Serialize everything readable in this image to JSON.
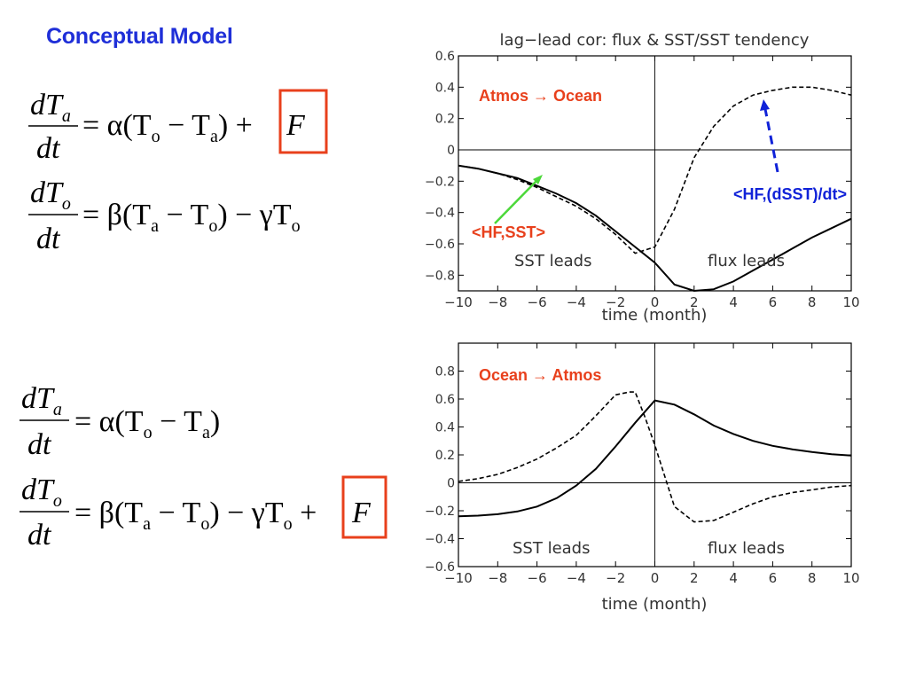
{
  "slide": {
    "title": "Conceptual Model"
  },
  "equations": {
    "top": {
      "eq1": {
        "num": "dT",
        "num_sub": "a",
        "den": "dt",
        "rhs": "= α(T",
        "s1": "o",
        "mid": " − T",
        "s2": "a",
        "end": ") + ",
        "forcing": "F"
      },
      "eq2": {
        "num": "dT",
        "num_sub": "o",
        "den": "dt",
        "rhs": "= β(T",
        "s1": "a",
        "mid": " − T",
        "s2": "o",
        "end": ") − γT",
        "s3": "o"
      }
    },
    "bottom": {
      "eq1": {
        "num": "dT",
        "num_sub": "a",
        "den": "dt",
        "rhs": "= α(T",
        "s1": "o",
        "mid": " − T",
        "s2": "a",
        "end": ")"
      },
      "eq2": {
        "num": "dT",
        "num_sub": "o",
        "den": "dt",
        "rhs": "= β(T",
        "s1": "a",
        "mid": " − T",
        "s2": "o",
        "end": ") − γT",
        "s3": "o",
        "plus": " + ",
        "forcing": "F"
      }
    },
    "box_color": "#e8401c"
  },
  "colors": {
    "annotation_red": "#e8401c",
    "annotation_blue": "#1022d8",
    "arrow_green": "#4cd83a",
    "line": "#000000"
  },
  "chart_data": [
    {
      "type": "line",
      "title": "lag−lead cor: flux & SST/SST tendency",
      "xlabel": "time (month)",
      "ylabel": "",
      "xlim": [
        -10,
        10
      ],
      "ylim": [
        -0.9,
        0.6
      ],
      "xticks": [
        "−10",
        "−8",
        "−6",
        "−4",
        "−2",
        "0",
        "2",
        "4",
        "6",
        "8",
        "10"
      ],
      "yticks": [
        "0.6",
        "0.4",
        "0.2",
        "0",
        "−0.2",
        "−0.4",
        "−0.6",
        "−0.8"
      ],
      "ytick_values": [
        0.6,
        0.4,
        0.2,
        0,
        -0.2,
        -0.4,
        -0.6,
        -0.8
      ],
      "xtick_values": [
        -10,
        -8,
        -6,
        -4,
        -2,
        0,
        2,
        4,
        6,
        8,
        10
      ],
      "series": [
        {
          "style": "solid",
          "x": [
            -10,
            -9,
            -8,
            -7,
            -6,
            -5,
            -4,
            -3,
            -2,
            -1,
            0,
            1,
            2,
            3,
            4,
            5,
            6,
            7,
            8,
            9,
            10
          ],
          "values": [
            -0.1,
            -0.12,
            -0.15,
            -0.18,
            -0.23,
            -0.28,
            -0.34,
            -0.42,
            -0.52,
            -0.62,
            -0.72,
            -0.86,
            -0.9,
            -0.89,
            -0.84,
            -0.77,
            -0.7,
            -0.63,
            -0.56,
            -0.5,
            -0.44
          ]
        },
        {
          "style": "dashed",
          "x": [
            -10,
            -9,
            -8,
            -7,
            -6,
            -5,
            -4,
            -3,
            -2,
            -1,
            0,
            1,
            2,
            3,
            4,
            5,
            6,
            7,
            8,
            9,
            10
          ],
          "values": [
            -0.1,
            -0.12,
            -0.15,
            -0.19,
            -0.24,
            -0.3,
            -0.36,
            -0.44,
            -0.54,
            -0.66,
            -0.62,
            -0.38,
            -0.05,
            0.15,
            0.28,
            0.35,
            0.38,
            0.4,
            0.4,
            0.38,
            0.35
          ]
        }
      ],
      "annotations": {
        "direction": "Atmos → Ocean",
        "sst_leads": "SST leads",
        "flux_leads": "flux leads",
        "hf_sst": "<HF,SST>",
        "hf_dsst": "<HF,(dSST)/dt>"
      }
    },
    {
      "type": "line",
      "title": "",
      "xlabel": "time (month)",
      "ylabel": "",
      "xlim": [
        -10,
        10
      ],
      "ylim": [
        -0.6,
        1.0
      ],
      "xticks": [
        "−10",
        "−8",
        "−6",
        "−4",
        "−2",
        "0",
        "2",
        "4",
        "6",
        "8",
        "10"
      ],
      "yticks": [
        "0.8",
        "0.6",
        "0.4",
        "0.2",
        "0",
        "−0.2",
        "−0.4",
        "−0.6"
      ],
      "ytick_values": [
        0.8,
        0.6,
        0.4,
        0.2,
        0,
        -0.2,
        -0.4,
        -0.6
      ],
      "xtick_values": [
        -10,
        -8,
        -6,
        -4,
        -2,
        0,
        2,
        4,
        6,
        8,
        10
      ],
      "series": [
        {
          "style": "solid",
          "x": [
            -10,
            -9,
            -8,
            -7,
            -6,
            -5,
            -4,
            -3,
            -2,
            -1,
            0,
            1,
            2,
            3,
            4,
            5,
            6,
            7,
            8,
            9,
            10
          ],
          "values": [
            -0.24,
            -0.235,
            -0.225,
            -0.205,
            -0.17,
            -0.11,
            -0.02,
            0.1,
            0.26,
            0.43,
            0.59,
            0.56,
            0.49,
            0.41,
            0.35,
            0.3,
            0.265,
            0.24,
            0.22,
            0.205,
            0.195
          ]
        },
        {
          "style": "dashed",
          "x": [
            -10,
            -9,
            -8,
            -7,
            -6,
            -5,
            -4,
            -3,
            -2,
            -1.3,
            -1,
            -0.5,
            0,
            1,
            2,
            3,
            4,
            5,
            6,
            7,
            8,
            9,
            10
          ],
          "values": [
            0.01,
            0.03,
            0.06,
            0.11,
            0.17,
            0.25,
            0.34,
            0.48,
            0.63,
            0.65,
            0.65,
            0.47,
            0.27,
            -0.17,
            -0.28,
            -0.27,
            -0.21,
            -0.15,
            -0.1,
            -0.07,
            -0.05,
            -0.03,
            -0.02
          ]
        }
      ],
      "annotations": {
        "direction": "Ocean → Atmos",
        "sst_leads": "SST leads",
        "flux_leads": "flux leads"
      }
    }
  ]
}
